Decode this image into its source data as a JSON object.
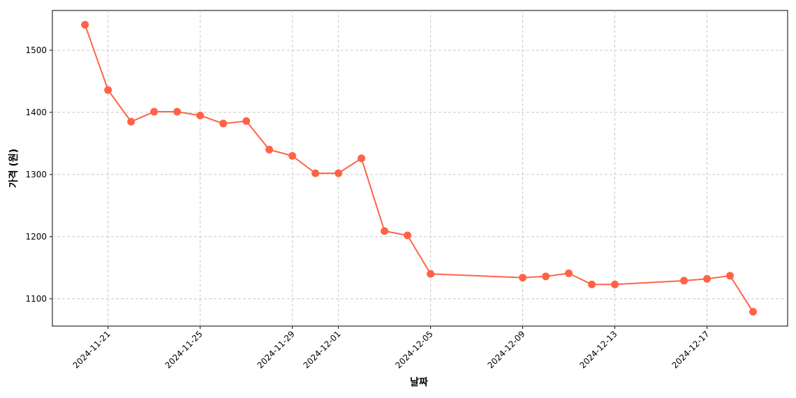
{
  "chart_data": {
    "type": "line",
    "xlabel": "날짜",
    "ylabel": "가격 (원)",
    "x": [
      "2024-11-20",
      "2024-11-21",
      "2024-11-22",
      "2024-11-23",
      "2024-11-24",
      "2024-11-25",
      "2024-11-26",
      "2024-11-27",
      "2024-11-28",
      "2024-11-29",
      "2024-11-30",
      "2024-12-01",
      "2024-12-02",
      "2024-12-03",
      "2024-12-04",
      "2024-12-05",
      "2024-12-09",
      "2024-12-10",
      "2024-12-11",
      "2024-12-12",
      "2024-12-13",
      "2024-12-16",
      "2024-12-17",
      "2024-12-18",
      "2024-12-19"
    ],
    "series": [
      {
        "color": "#ff6347",
        "values": [
          1541,
          1436,
          1385,
          1401,
          1401,
          1395,
          1382,
          1386,
          1340,
          1330,
          1302,
          1302,
          1326,
          1209,
          1202,
          1140,
          1134,
          1136,
          1141,
          1123,
          1123,
          1129,
          1132,
          1137,
          1079
        ]
      }
    ],
    "xlim": [
      "2024-11-18T14:00",
      "2024-12-20T12:00"
    ],
    "xticks": [
      "2024-11-21",
      "2024-11-25",
      "2024-11-29",
      "2024-12-01",
      "2024-12-05",
      "2024-12-09",
      "2024-12-13",
      "2024-12-17"
    ],
    "ylim": [
      1056,
      1564
    ],
    "yticks": [
      1100,
      1200,
      1300,
      1400,
      1500
    ],
    "grid": true
  }
}
